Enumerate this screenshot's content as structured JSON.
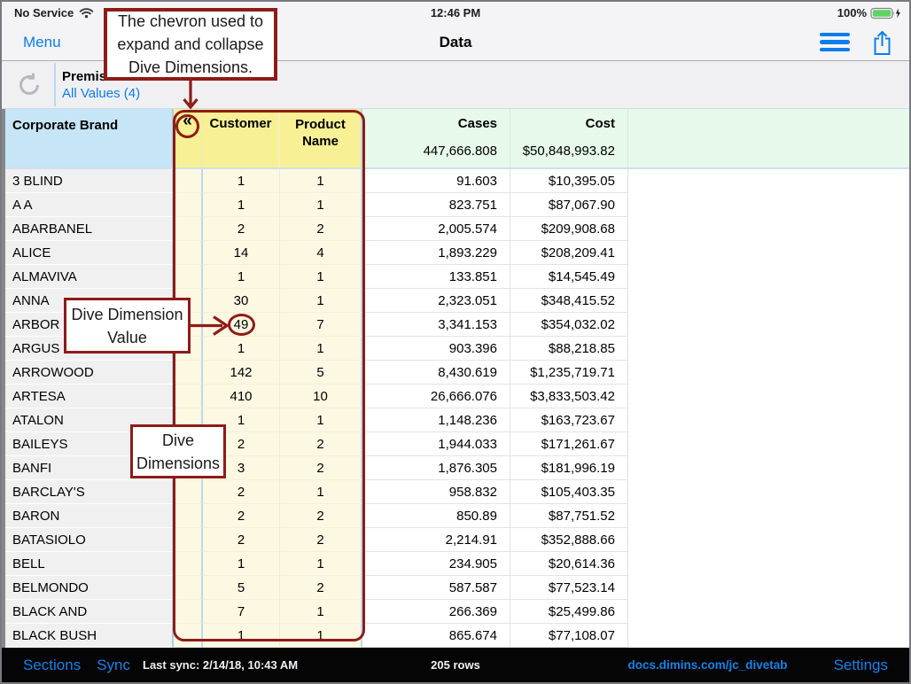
{
  "colors": {
    "ios_blue": "#0b7ceb",
    "annotation_red": "#8e1b17",
    "header_blue": "#c6e5f6",
    "header_yellow": "#f7f094",
    "header_green": "#e6f9ea"
  },
  "status_bar": {
    "carrier": "No Service",
    "time": "12:46 PM",
    "battery_percent": "100%"
  },
  "nav_bar": {
    "menu_label": "Menu",
    "title": "Data"
  },
  "filter_bar": {
    "dimension_label": "Premis",
    "values_label": "All Values (4)"
  },
  "table": {
    "brand_header": "Corporate Brand",
    "collapse_chevron": "«",
    "customer_header": "Customer",
    "product_header": "Product Name",
    "cases_header": "Cases",
    "cost_header": "Cost",
    "cases_total": "447,666.808",
    "cost_total": "$50,848,993.82",
    "rows": [
      {
        "brand": "3 BLIND",
        "customer": "1",
        "product": "1",
        "cases": "91.603",
        "cost": "$10,395.05"
      },
      {
        "brand": "A A",
        "customer": "1",
        "product": "1",
        "cases": "823.751",
        "cost": "$87,067.90"
      },
      {
        "brand": "ABARBANEL",
        "customer": "2",
        "product": "2",
        "cases": "2,005.574",
        "cost": "$209,908.68"
      },
      {
        "brand": "ALICE",
        "customer": "14",
        "product": "4",
        "cases": "1,893.229",
        "cost": "$208,209.41"
      },
      {
        "brand": "ALMAVIVA",
        "customer": "1",
        "product": "1",
        "cases": "133.851",
        "cost": "$14,545.49"
      },
      {
        "brand": "ANNA",
        "customer": "30",
        "product": "1",
        "cases": "2,323.051",
        "cost": "$348,415.52"
      },
      {
        "brand": "ARBOR",
        "customer": "49",
        "product": "7",
        "cases": "3,341.153",
        "cost": "$354,032.02"
      },
      {
        "brand": "ARGUS",
        "customer": "1",
        "product": "1",
        "cases": "903.396",
        "cost": "$88,218.85"
      },
      {
        "brand": "ARROWOOD",
        "customer": "142",
        "product": "5",
        "cases": "8,430.619",
        "cost": "$1,235,719.71"
      },
      {
        "brand": "ARTESA",
        "customer": "410",
        "product": "10",
        "cases": "26,666.076",
        "cost": "$3,833,503.42"
      },
      {
        "brand": "ATALON",
        "customer": "1",
        "product": "1",
        "cases": "1,148.236",
        "cost": "$163,723.67"
      },
      {
        "brand": "BAILEYS",
        "customer": "2",
        "product": "2",
        "cases": "1,944.033",
        "cost": "$171,261.67"
      },
      {
        "brand": "BANFI",
        "customer": "3",
        "product": "2",
        "cases": "1,876.305",
        "cost": "$181,996.19"
      },
      {
        "brand": "BARCLAY'S",
        "customer": "2",
        "product": "1",
        "cases": "958.832",
        "cost": "$105,403.35"
      },
      {
        "brand": "BARON",
        "customer": "2",
        "product": "2",
        "cases": "850.89",
        "cost": "$87,751.52"
      },
      {
        "brand": "BATASIOLO",
        "customer": "2",
        "product": "2",
        "cases": "2,214.91",
        "cost": "$352,888.66"
      },
      {
        "brand": "BELL",
        "customer": "1",
        "product": "1",
        "cases": "234.905",
        "cost": "$20,614.36"
      },
      {
        "brand": "BELMONDO",
        "customer": "5",
        "product": "2",
        "cases": "587.587",
        "cost": "$77,523.14"
      },
      {
        "brand": "BLACK AND",
        "customer": "7",
        "product": "1",
        "cases": "266.369",
        "cost": "$25,499.86"
      },
      {
        "brand": "BLACK BUSH",
        "customer": "1",
        "product": "1",
        "cases": "865.674",
        "cost": "$77,108.07"
      }
    ]
  },
  "annotations": {
    "chevron_callout_lines": [
      "The chevron used to",
      "expand and collapse",
      "Dive Dimensions."
    ],
    "value_callout_lines": [
      "Dive Dimension",
      "Value"
    ],
    "dimensions_callout_lines": [
      "Dive",
      "Dimensions"
    ],
    "circled_row_index": 6,
    "circled_value": "49"
  },
  "bottom_bar": {
    "sections_label": "Sections",
    "sync_label": "Sync",
    "last_sync": "Last sync: 2/14/18, 10:43 AM",
    "row_count": "205 rows",
    "link": "docs.dimins.com/jc_divetab",
    "settings_label": "Settings"
  }
}
